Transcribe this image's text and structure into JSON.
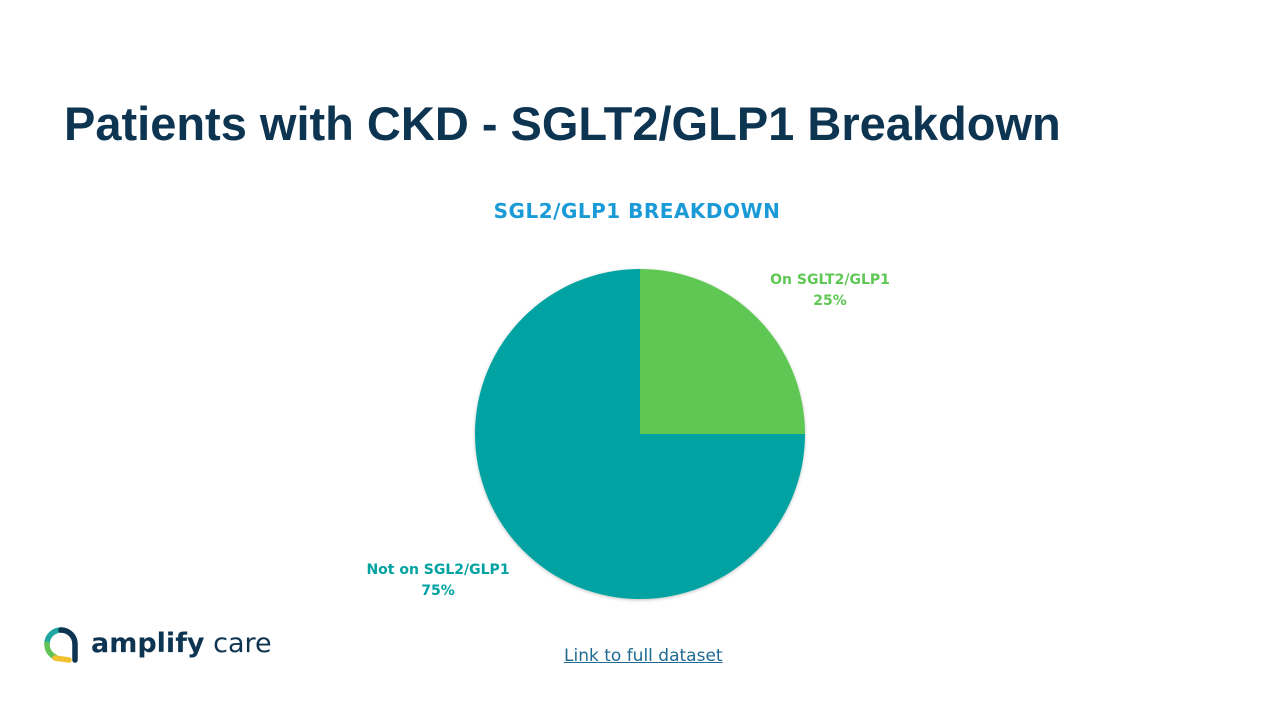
{
  "slide": {
    "title": "Patients with CKD - SGLT2/GLP1 Breakdown",
    "link_text": "Link to full dataset",
    "logo": {
      "brand_bold": "amplify",
      "brand_light": " care",
      "colors": [
        "#0d3451",
        "#1fa6a0",
        "#62c354",
        "#f2c12e"
      ]
    }
  },
  "chart_data": {
    "type": "pie",
    "title": "SGL2/GLP1 BREAKDOWN",
    "slices": [
      {
        "name": "On SGLT2/GLP1",
        "percent_label": "25%",
        "value": 25,
        "color": "#5fc753"
      },
      {
        "name": "Not on SGL2/GLP1",
        "percent_label": "75%",
        "value": 75,
        "color": "#00a3a1"
      }
    ],
    "start_angle_deg": 0,
    "direction": "clockwise",
    "legend": "none"
  }
}
